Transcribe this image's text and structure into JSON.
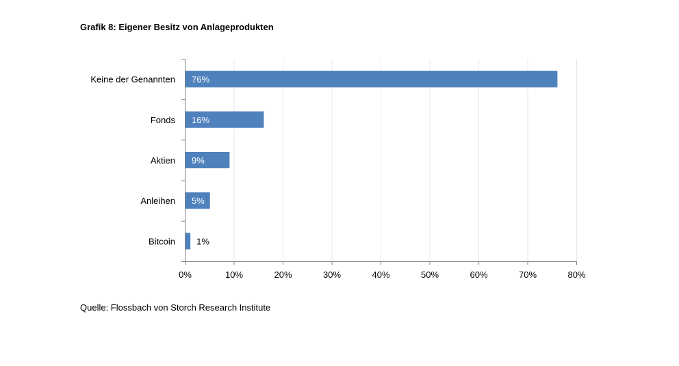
{
  "chart_data": {
    "type": "bar",
    "orientation": "horizontal",
    "title": "Grafik 8: Eigener Besitz von Anlageprodukten",
    "source": "Quelle: Flossbach von Storch Research Institute",
    "categories": [
      "Keine der Genannten",
      "Fonds",
      "Aktien",
      "Anleihen",
      "Bitcoin"
    ],
    "values": [
      76,
      16,
      9,
      5,
      1
    ],
    "value_labels": [
      "76%",
      "16%",
      "9%",
      "5%",
      "1%"
    ],
    "xlim": [
      0,
      80
    ],
    "x_ticks": [
      0,
      10,
      20,
      30,
      40,
      50,
      60,
      70,
      80
    ],
    "x_tick_labels": [
      "0%",
      "10%",
      "20%",
      "30%",
      "40%",
      "50%",
      "60%",
      "70%",
      "80%"
    ],
    "grid": "vertical",
    "legend": "none",
    "colors": {
      "bar": "#4f81bd",
      "grid": "#e3e8f0",
      "axis": "#808080"
    }
  }
}
